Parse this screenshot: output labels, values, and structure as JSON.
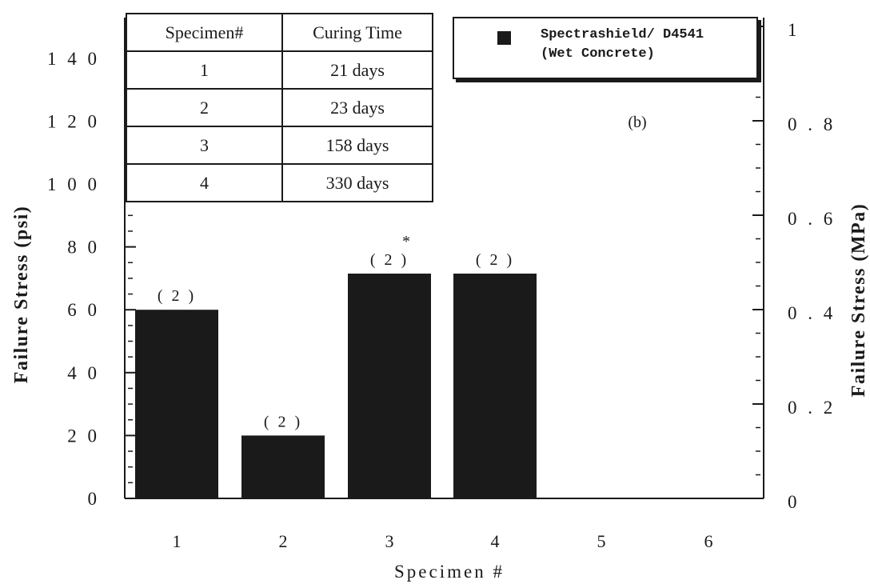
{
  "chart_data": {
    "type": "bar",
    "categories": [
      "1",
      "2",
      "3",
      "4",
      "5",
      "6"
    ],
    "series": [
      {
        "name": "Spectrashield/  D4541 (Wet  Concrete)",
        "values": [
          60,
          20,
          71.5,
          71.5,
          null,
          null
        ]
      }
    ],
    "bar_labels": [
      "( 2 )",
      "( 2 )",
      "( 2 )",
      "( 2 )",
      "",
      ""
    ],
    "bar_annotations": [
      "",
      "",
      "*",
      "",
      "",
      ""
    ],
    "xlabel": "Specimen  #",
    "ylabel": "Failure  Stress  (psi)",
    "ylim": [
      0,
      145
    ],
    "yticks": [
      0,
      20,
      40,
      60,
      80,
      100,
      120,
      140
    ],
    "ytick_labels": [
      "0",
      "2 0",
      "4 0",
      "6 0",
      "8 0",
      "1 0 0",
      "1 2 0",
      "1 4 0"
    ],
    "y2label": "Failure  Stress  (MPa)",
    "y2lim": [
      0,
      1.0
    ],
    "y2ticks": [
      0,
      0.2,
      0.4,
      0.6,
      0.8,
      1
    ],
    "y2tick_labels": [
      "0",
      "0 . 2",
      "0 . 4",
      "0 . 6",
      "0 . 8",
      "1"
    ],
    "panel_tag": "(b)",
    "legend": {
      "line1": "Spectrashield/  D4541",
      "line2": "(Wet  Concrete)",
      "position": "top-right"
    },
    "bar_color": "#1a1a1a",
    "grid": false
  },
  "curing_table": {
    "headers": [
      "Specimen#",
      "Curing Time"
    ],
    "rows": [
      [
        "1",
        "21 days"
      ],
      [
        "2",
        "23 days"
      ],
      [
        "3",
        "158 days"
      ],
      [
        "4",
        "330 days"
      ]
    ]
  }
}
